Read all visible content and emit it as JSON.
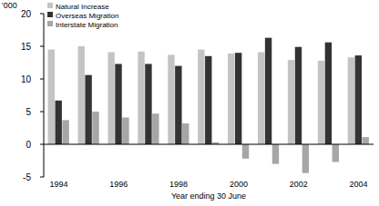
{
  "chart_data": {
    "type": "bar",
    "y_label": "'000",
    "x_label": "Year ending 30 June",
    "categories": [
      "1994",
      null,
      "1996",
      null,
      "1998",
      null,
      "2000",
      null,
      "2002",
      null,
      "2004"
    ],
    "series": [
      {
        "name": "Natural Increase",
        "color": "#c4c4c4",
        "values": [
          14.5,
          15.0,
          14.1,
          14.2,
          13.7,
          14.5,
          13.9,
          14.1,
          12.9,
          12.8,
          13.3
        ]
      },
      {
        "name": "Overseas Migration",
        "color": "#333333",
        "values": [
          6.7,
          10.6,
          12.3,
          12.3,
          12.0,
          13.5,
          14.0,
          16.3,
          14.9,
          15.6,
          13.6
        ]
      },
      {
        "name": "Interstate Migration",
        "color": "#a6a6a6",
        "values": [
          3.7,
          5.0,
          4.1,
          4.7,
          3.2,
          0.3,
          -2.2,
          -3.0,
          -4.4,
          -2.7,
          1.1
        ]
      }
    ],
    "ylim": [
      -5,
      20
    ],
    "yticks": [
      -5,
      0,
      5,
      10,
      15,
      20
    ],
    "legend": "upper left",
    "grid": false
  }
}
